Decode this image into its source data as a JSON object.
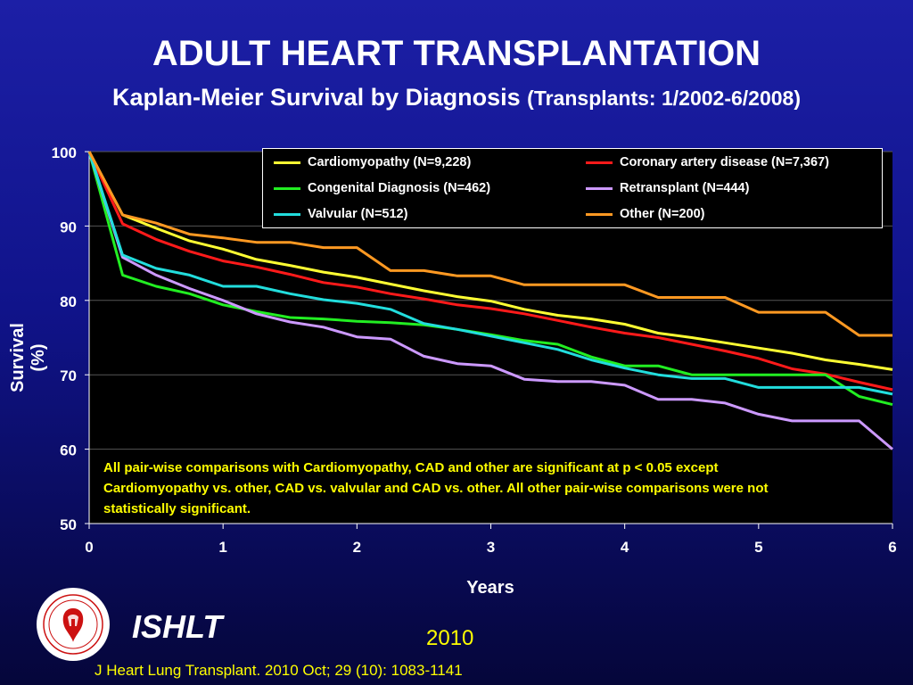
{
  "slide": {
    "title": "ADULT HEART TRANSPLANTATION",
    "subtitle_main": "Kaplan-Meier Survival by Diagnosis",
    "subtitle_small": "(Transplants: 1/2002-6/2008)",
    "brand": "ISHLT",
    "year": "2010",
    "citation": "J Heart Lung Transplant. 2010 Oct; 29 (10): 1083-1141",
    "logo_text": "INTERNATIONAL SOCIETY FOR HEART & LUNG TRANSPLANTATION",
    "colors": {
      "background_top": "#1c1fa6",
      "background_bottom": "#05063a",
      "note": "#ffff00"
    }
  },
  "chart_data": {
    "type": "line",
    "xlabel": "Years",
    "ylabel": "Survival (%)",
    "xlim": [
      0,
      6
    ],
    "ylim": [
      50,
      100
    ],
    "xticks": [
      "0",
      "1",
      "2",
      "3",
      "4",
      "5",
      "6"
    ],
    "yticks": [
      "50",
      "60",
      "70",
      "80",
      "90",
      "100"
    ],
    "grid": "horizontal",
    "legend_position": "top-right",
    "note": "All pair-wise comparisons with Cardiomyopathy, CAD and other are significant at p < 0.05 except Cardiomyopathy vs. other, CAD vs. valvular and CAD vs. other.  All other pair-wise comparisons were not statistically significant.",
    "x": [
      0,
      0.25,
      0.5,
      0.75,
      1,
      1.25,
      1.5,
      1.75,
      2,
      2.25,
      2.5,
      2.75,
      3,
      3.25,
      3.5,
      3.75,
      4,
      4.25,
      4.5,
      4.75,
      5,
      5.25,
      5.5,
      5.75,
      6
    ],
    "series": [
      {
        "name": "Cardiomyopathy  (N=9,228)",
        "color": "#ffff33",
        "values": [
          100,
          91.5,
          89.7,
          88.0,
          86.9,
          85.5,
          84.7,
          83.8,
          83.1,
          82.2,
          81.3,
          80.5,
          79.9,
          78.8,
          78.0,
          77.5,
          76.8,
          75.6,
          75.0,
          74.3,
          73.6,
          72.9,
          72.0,
          71.4,
          70.7
        ]
      },
      {
        "name": "Coronary artery disease (N=7,367)",
        "color": "#ff1a1a",
        "values": [
          100,
          90.3,
          88.2,
          86.6,
          85.3,
          84.5,
          83.5,
          82.4,
          81.8,
          80.9,
          80.2,
          79.4,
          78.9,
          78.2,
          77.3,
          76.4,
          75.6,
          75.0,
          74.1,
          73.2,
          72.2,
          70.8,
          70.1,
          69.0,
          68.0
        ]
      },
      {
        "name": "Congenital Diagnosis  (N=462)",
        "color": "#22ee22",
        "values": [
          100,
          83.4,
          81.9,
          80.9,
          79.4,
          78.5,
          77.7,
          77.5,
          77.2,
          77.0,
          76.7,
          76.1,
          75.4,
          74.6,
          74.1,
          72.4,
          71.2,
          71.2,
          70.0,
          70.0,
          70.0,
          70.0,
          70.0,
          67.1,
          66.0
        ]
      },
      {
        "name": "Retransplant (N=444)",
        "color": "#cc99ff",
        "values": [
          100,
          85.8,
          83.4,
          81.6,
          80.0,
          78.2,
          77.1,
          76.4,
          75.1,
          74.8,
          72.5,
          71.5,
          71.2,
          69.4,
          69.1,
          69.1,
          68.6,
          66.7,
          66.7,
          66.2,
          64.7,
          63.8,
          63.8,
          63.8,
          60.0
        ]
      },
      {
        "name": "Valvular (N=512)",
        "color": "#22dddd",
        "values": [
          100,
          86.1,
          84.3,
          83.4,
          81.9,
          81.9,
          80.9,
          80.1,
          79.6,
          78.8,
          76.9,
          76.1,
          75.2,
          74.3,
          73.4,
          72.0,
          70.9,
          70.0,
          69.5,
          69.5,
          68.3,
          68.3,
          68.3,
          68.3,
          67.4
        ]
      },
      {
        "name": "Other (N=200)",
        "color": "#ff9922",
        "values": [
          100,
          91.5,
          90.4,
          88.9,
          88.4,
          87.8,
          87.8,
          87.1,
          87.1,
          84.0,
          84.0,
          83.3,
          83.3,
          82.1,
          82.1,
          82.1,
          82.1,
          80.4,
          80.4,
          80.4,
          78.4,
          78.4,
          78.4,
          75.3,
          75.3
        ]
      }
    ]
  }
}
